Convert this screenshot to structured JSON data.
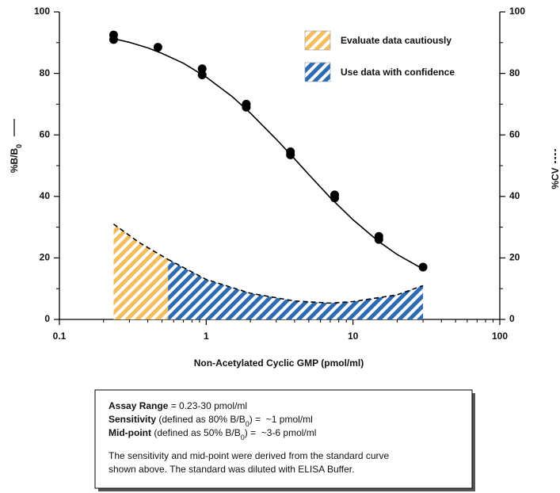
{
  "chart_data": {
    "type": "line",
    "xlabel": "Non-Acetylated Cyclic GMP (pmol/ml)",
    "ylabel": [
      "%B/B",
      "0"
    ],
    "y2label": "%CV",
    "xscale": "log",
    "xlim": [
      0.1,
      100
    ],
    "xticks": [
      0.1,
      1,
      10,
      100
    ],
    "xminor_ticks": [
      0.2,
      0.3,
      0.4,
      0.5,
      0.6,
      0.7,
      0.8,
      0.9,
      2,
      3,
      4,
      5,
      6,
      7,
      8,
      9,
      20,
      30,
      40,
      50,
      60,
      70,
      80,
      90
    ],
    "ylim": [
      0,
      100
    ],
    "yticks": [
      0,
      20,
      40,
      60,
      80,
      100
    ],
    "yminor_ticks": [
      10,
      30,
      50,
      70,
      90
    ],
    "y2lim": [
      0,
      100
    ],
    "y2ticks": [
      0,
      20,
      40,
      60,
      80,
      100
    ],
    "legend": "top-right",
    "series": [
      {
        "name": "Evaluate data cautiously",
        "type": "area",
        "axis": "y2",
        "color": "#f3bd5c",
        "x": [
          0.234,
          0.35,
          0.55
        ],
        "values": [
          31,
          25,
          19.5
        ]
      },
      {
        "name": "Use data with confidence",
        "type": "area",
        "axis": "y2",
        "color": "#2d6cb3",
        "x": [
          0.55,
          1,
          2,
          4,
          7,
          10,
          20,
          30
        ],
        "values": [
          19.5,
          13,
          8.5,
          6,
          5.3,
          5.8,
          8,
          11
        ]
      },
      {
        "type": "scatter",
        "color": "#000000",
        "x": [
          0.234,
          0.234,
          0.469,
          0.938,
          0.938,
          1.875,
          1.875,
          3.75,
          3.75,
          7.5,
          7.5,
          15,
          15,
          30
        ],
        "values": [
          92.5,
          91,
          88.5,
          81.5,
          79.5,
          70,
          69,
          54.5,
          53.5,
          40.5,
          39.5,
          27,
          26,
          17
        ]
      },
      {
        "type": "line",
        "color": "#000000",
        "x": [
          0.234,
          0.3,
          0.4,
          0.5,
          0.7,
          1,
          1.5,
          2,
          3,
          4,
          5,
          7,
          10,
          15,
          20,
          30
        ],
        "values": [
          91.3,
          90.1,
          88.3,
          86.5,
          83.3,
          78.8,
          72.5,
          67.1,
          58.6,
          52.2,
          47.1,
          39.6,
          32.4,
          25.3,
          21.1,
          16.4
        ]
      }
    ]
  },
  "info_box": {
    "lines": [
      [
        {
          "text": "Assay Range",
          "bold": true
        },
        {
          "text": " = 0.23-30 pmol/ml"
        }
      ],
      [
        {
          "text": "Sensitivity",
          "bold": true
        },
        {
          "text": " (defined as 80% B/B"
        },
        {
          "text": "0",
          "sub": true
        },
        {
          "text": ") =  ~1 pmol/ml"
        }
      ],
      [
        {
          "text": "Mid-point",
          "bold": true
        },
        {
          "text": " (defined as 50% B/B"
        },
        {
          "text": "0",
          "sub": true
        },
        {
          "text": ") =  ~3-6 pmol/ml"
        }
      ]
    ],
    "note": [
      [
        {
          "text": "The sensitivity and mid-point were derived from the standard curve"
        }
      ],
      [
        {
          "text": "shown above. The standard was diluted with ELISA Buffer."
        }
      ]
    ]
  }
}
